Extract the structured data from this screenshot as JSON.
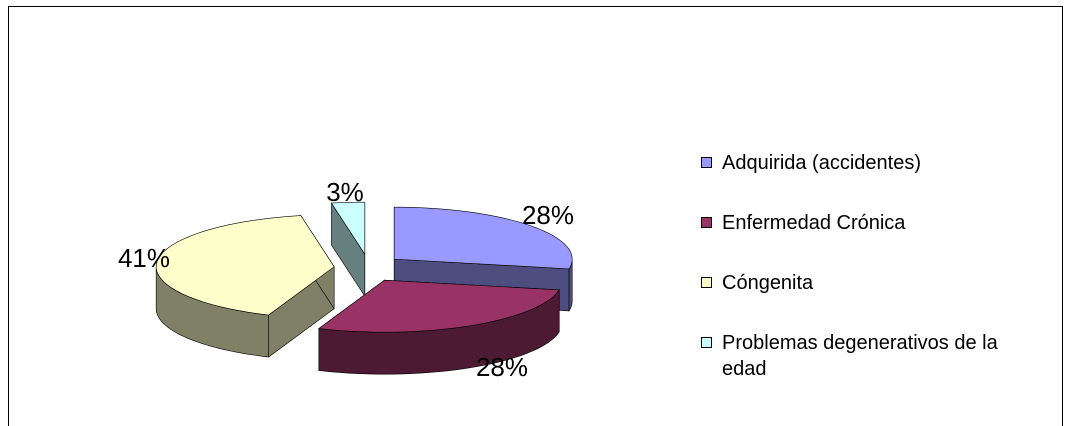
{
  "chart_data": {
    "type": "pie",
    "style": "3d-exploded",
    "title": "",
    "legend_position": "right",
    "slices": [
      {
        "label": "Adquirida (accidentes)",
        "value": 28,
        "value_label": "28%",
        "color": "#9999ff",
        "side_color": "#4d4d80"
      },
      {
        "label": "Enfermedad Crónica",
        "value": 28,
        "value_label": "28%",
        "color": "#993366",
        "side_color": "#4d1a33"
      },
      {
        "label": "Cóngenita",
        "value": 41,
        "value_label": "41%",
        "color": "#ffffcc",
        "side_color": "#808066"
      },
      {
        "label": "Problemas degenerativos de la edad",
        "value": 3,
        "value_label": "3%",
        "color": "#ccffff",
        "side_color": "#668080"
      }
    ]
  }
}
